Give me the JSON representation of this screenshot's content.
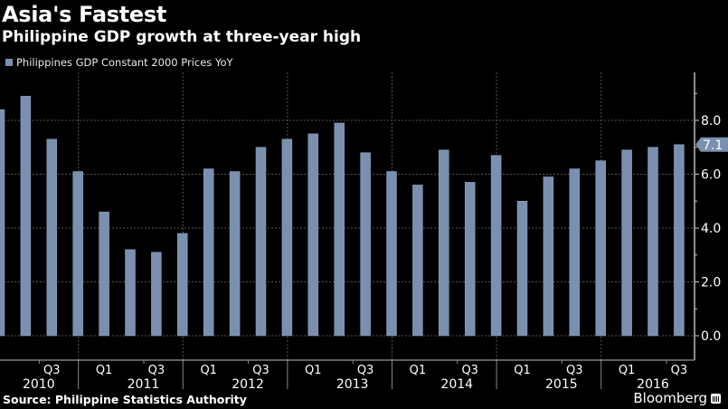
{
  "header": {
    "title": "Asia's Fastest",
    "subtitle": "Philippine GDP growth at three-year high"
  },
  "legend": {
    "label": "Philippines GDP Constant 2000 Prices YoY",
    "color": "#7b90b0"
  },
  "footer": {
    "source": "Source: Philippine Statistics Authority",
    "brand": "Bloomberg"
  },
  "chart_data": {
    "type": "bar",
    "title": "Asia's Fastest",
    "subtitle": "Philippine GDP growth at three-year high",
    "xlabel": "",
    "ylabel": "",
    "ylim": [
      0,
      9.6
    ],
    "yticks": [
      "0.0",
      "2.0",
      "4.0",
      "6.0",
      "8.0"
    ],
    "ytick_values": [
      0,
      2,
      4,
      6,
      8
    ],
    "grid": true,
    "legend_position": "top-left",
    "y_axis_side": "right",
    "last_value_label": "7.1",
    "categories": [
      "Q1 2010",
      "Q2 2010",
      "Q3 2010",
      "Q4 2010",
      "Q1 2011",
      "Q2 2011",
      "Q3 2011",
      "Q4 2011",
      "Q1 2012",
      "Q2 2012",
      "Q3 2012",
      "Q4 2012",
      "Q1 2013",
      "Q2 2013",
      "Q3 2013",
      "Q4 2013",
      "Q1 2014",
      "Q2 2014",
      "Q3 2014",
      "Q4 2014",
      "Q1 2015",
      "Q2 2015",
      "Q3 2015",
      "Q4 2015",
      "Q1 2016",
      "Q2 2016",
      "Q3 2016"
    ],
    "series": [
      {
        "name": "Philippines GDP Constant 2000 Prices YoY",
        "color": "#7b90b0",
        "values": [
          8.4,
          8.9,
          7.3,
          6.1,
          4.6,
          3.2,
          3.1,
          3.8,
          6.2,
          6.1,
          7.0,
          7.3,
          7.5,
          7.9,
          6.8,
          6.1,
          5.6,
          6.9,
          5.7,
          6.7,
          5.0,
          5.9,
          6.2,
          6.5,
          6.9,
          7.0,
          7.1
        ]
      }
    ],
    "x_quarter_labels": [
      {
        "index": 2,
        "label": "Q3"
      },
      {
        "index": 4,
        "label": "Q1"
      },
      {
        "index": 6,
        "label": "Q3"
      },
      {
        "index": 8,
        "label": "Q1"
      },
      {
        "index": 10,
        "label": "Q3"
      },
      {
        "index": 12,
        "label": "Q1"
      },
      {
        "index": 14,
        "label": "Q3"
      },
      {
        "index": 16,
        "label": "Q1"
      },
      {
        "index": 18,
        "label": "Q3"
      },
      {
        "index": 20,
        "label": "Q1"
      },
      {
        "index": 22,
        "label": "Q3"
      },
      {
        "index": 24,
        "label": "Q1"
      },
      {
        "index": 26,
        "label": "Q3"
      }
    ],
    "x_year_labels": [
      {
        "center": 1.5,
        "label": "2010"
      },
      {
        "center": 5.5,
        "label": "2011"
      },
      {
        "center": 9.5,
        "label": "2012"
      },
      {
        "center": 13.5,
        "label": "2013"
      },
      {
        "center": 17.5,
        "label": "2014"
      },
      {
        "center": 21.5,
        "label": "2015"
      },
      {
        "center": 25.0,
        "label": "2016"
      }
    ]
  }
}
